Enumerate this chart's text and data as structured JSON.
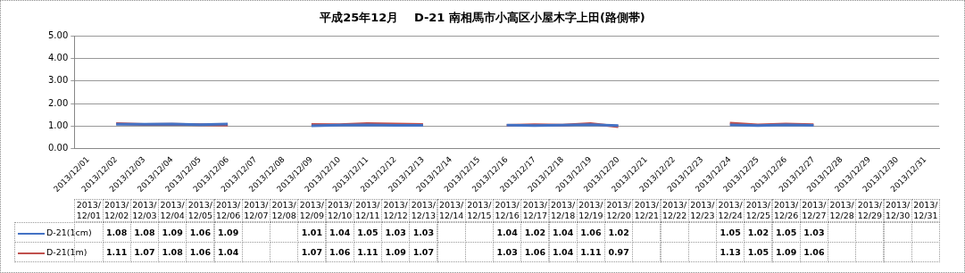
{
  "chart_data": {
    "type": "line",
    "title": "平成25年12月　 D-21 南相馬市小高区小屋木字上田(路側帯)",
    "categories": [
      "2013/12/01",
      "2013/12/02",
      "2013/12/03",
      "2013/12/04",
      "2013/12/05",
      "2013/12/06",
      "2013/12/07",
      "2013/12/08",
      "2013/12/09",
      "2013/12/10",
      "2013/12/11",
      "2013/12/12",
      "2013/12/13",
      "2013/12/14",
      "2013/12/15",
      "2013/12/16",
      "2013/12/17",
      "2013/12/18",
      "2013/12/19",
      "2013/12/20",
      "2013/12/21",
      "2013/12/22",
      "2013/12/23",
      "2013/12/24",
      "2013/12/25",
      "2013/12/26",
      "2013/12/27",
      "2013/12/28",
      "2013/12/29",
      "2013/12/30",
      "2013/12/31"
    ],
    "series": [
      {
        "name": "D-21(1cm)",
        "color": "#4472c4",
        "values": [
          null,
          1.08,
          1.08,
          1.09,
          1.06,
          1.09,
          null,
          null,
          1.01,
          1.04,
          1.05,
          1.03,
          1.03,
          null,
          null,
          1.04,
          1.02,
          1.04,
          1.06,
          1.02,
          null,
          null,
          null,
          1.05,
          1.02,
          1.05,
          1.03,
          null,
          null,
          null,
          null
        ]
      },
      {
        "name": "D-21(1m)",
        "color": "#c0504d",
        "values": [
          null,
          1.11,
          1.07,
          1.08,
          1.06,
          1.04,
          null,
          null,
          1.07,
          1.06,
          1.11,
          1.09,
          1.07,
          null,
          null,
          1.03,
          1.06,
          1.04,
          1.11,
          0.97,
          null,
          null,
          null,
          1.13,
          1.05,
          1.09,
          1.06,
          null,
          null,
          null,
          null
        ]
      }
    ],
    "ylim": [
      0,
      5
    ],
    "yticks": [
      {
        "value": 0,
        "label": "0.00"
      },
      {
        "value": 1,
        "label": "1.00"
      },
      {
        "value": 2,
        "label": "2.00"
      },
      {
        "value": 3,
        "label": "3.00"
      },
      {
        "value": 4,
        "label": "4.00"
      },
      {
        "value": 5,
        "label": "5.00"
      }
    ],
    "grid": "y",
    "legend": "bottom",
    "marker": "none",
    "line_style": "solid",
    "data_labels": true
  }
}
